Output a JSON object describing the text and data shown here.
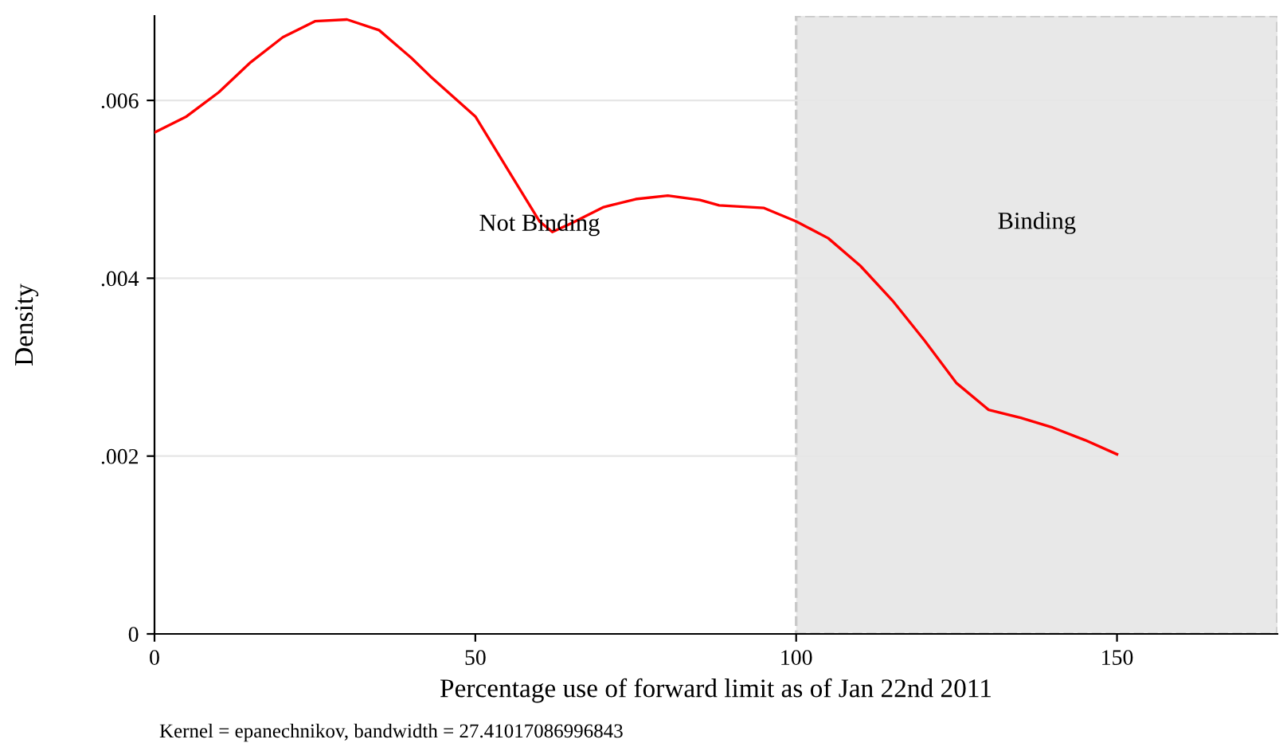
{
  "chart_data": {
    "type": "line",
    "xlabel": "Percentage use of forward limit as of Jan 22nd 2011",
    "ylabel": "Density",
    "x": [
      0,
      5,
      10,
      15,
      20,
      25,
      30,
      35,
      40,
      43,
      50,
      55,
      60,
      62,
      65,
      70,
      75,
      80,
      85,
      88,
      95,
      100,
      105,
      110,
      115,
      120,
      125,
      130,
      135,
      140,
      145,
      150
    ],
    "series": [
      {
        "color": "#ff0000",
        "values": [
          0.00564,
          0.00582,
          0.00609,
          0.00643,
          0.00671,
          0.00689,
          0.00691,
          0.00679,
          0.00648,
          0.00627,
          0.00582,
          0.00523,
          0.00464,
          0.00452,
          0.00462,
          0.0048,
          0.00489,
          0.00493,
          0.00488,
          0.00482,
          0.00479,
          0.00464,
          0.00445,
          0.00414,
          0.00375,
          0.0033,
          0.00282,
          0.00252,
          0.00243,
          0.00232,
          0.00218,
          0.00202
        ]
      }
    ],
    "xlim": [
      0,
      175
    ],
    "xticks": [
      0,
      50,
      100,
      150
    ],
    "ylim": [
      0,
      0.00695
    ],
    "yticks": [
      0,
      {
        "value": 0.002,
        "label": ".002"
      },
      {
        "value": 0.004,
        "label": ".004"
      },
      {
        "value": 0.006,
        "label": ".006"
      }
    ],
    "grid": "y",
    "legend": false,
    "marker": "none",
    "line_style": "solid",
    "bands": [
      {
        "axis": "x",
        "from": 100,
        "to": 175,
        "label": "Binding",
        "color": "#e8e8e8"
      }
    ],
    "annotations": [
      {
        "text": "Not Binding",
        "x": 60,
        "y": 0.0046
      },
      "Kernel = epanechnikov, bandwidth = 27.41017086996843"
    ]
  }
}
